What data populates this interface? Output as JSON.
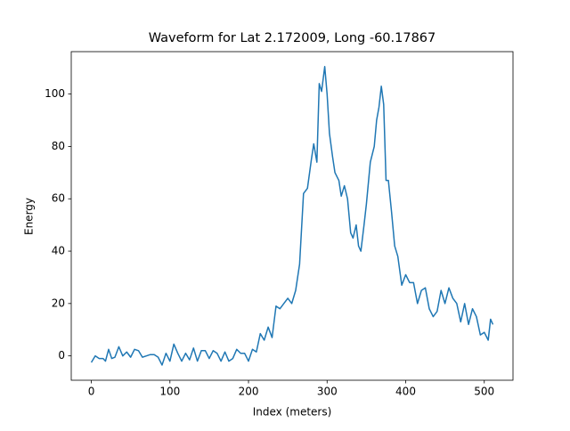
{
  "chart_data": {
    "type": "line",
    "title": "Waveform for Lat 2.172009, Long -60.17867",
    "x_label": "Index (meters)",
    "y_label": "Energy",
    "xlim": [
      -25.55,
      536.55
    ],
    "ylim": [
      -9.3,
      116.2
    ],
    "xticks": [
      0,
      100,
      200,
      300,
      400,
      500
    ],
    "yticks": [
      0,
      20,
      40,
      60,
      80,
      100
    ],
    "series": [
      {
        "color": "#1f77b4",
        "x": [
          0,
          5,
          10,
          15,
          18,
          22,
          26,
          30,
          35,
          40,
          45,
          50,
          55,
          60,
          65,
          70,
          75,
          80,
          85,
          90,
          95,
          100,
          105,
          110,
          115,
          120,
          125,
          130,
          135,
          140,
          145,
          150,
          155,
          160,
          165,
          170,
          175,
          180,
          185,
          190,
          195,
          200,
          205,
          210,
          215,
          220,
          225,
          230,
          235,
          240,
          245,
          250,
          255,
          260,
          265,
          270,
          275,
          280,
          283,
          287,
          290,
          293,
          297,
          300,
          303,
          307,
          310,
          315,
          318,
          322,
          326,
          330,
          333,
          337,
          340,
          343,
          347,
          350,
          355,
          360,
          363,
          366,
          369,
          372,
          375,
          378,
          382,
          386,
          390,
          395,
          400,
          405,
          410,
          415,
          420,
          425,
          430,
          435,
          440,
          445,
          450,
          455,
          460,
          465,
          470,
          475,
          480,
          485,
          490,
          495,
          500,
          505,
          508,
          511
        ],
        "values": [
          -2.5,
          0,
          -1,
          -1,
          -2,
          2.5,
          -1,
          -0.5,
          3.5,
          0,
          1.5,
          -0.5,
          2.5,
          2,
          -0.5,
          0,
          0.5,
          0.5,
          -0.5,
          -3.5,
          1,
          -2,
          4.5,
          1,
          -2,
          1,
          -1.5,
          3,
          -2,
          2,
          2,
          -1,
          2,
          1,
          -2,
          1.5,
          -2,
          -1,
          2.5,
          1,
          1,
          -2,
          2.5,
          1.5,
          8.5,
          6,
          11,
          7,
          19,
          18,
          20,
          22,
          20,
          25,
          35,
          62,
          64,
          75,
          81,
          74,
          104,
          101,
          110.5,
          100,
          85,
          76,
          70,
          67,
          61,
          65,
          60,
          47,
          45,
          50,
          42,
          40,
          50,
          58,
          74,
          80,
          90,
          95,
          103,
          96,
          67,
          67,
          55,
          42,
          38,
          27,
          31,
          28,
          28,
          20,
          25,
          26,
          18,
          15,
          17,
          25,
          20,
          26,
          22,
          20,
          13,
          20,
          12,
          18,
          15,
          8,
          9,
          6,
          14,
          12
        ]
      }
    ]
  }
}
